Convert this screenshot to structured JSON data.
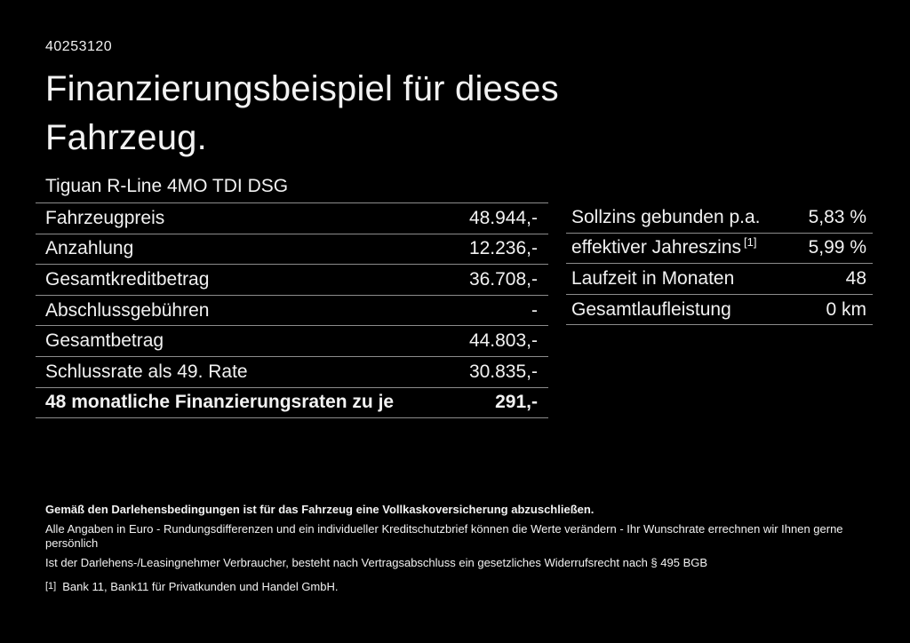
{
  "page": {
    "ref_number": "40253120",
    "title_line1": "Finanzierungsbeispiel für dieses",
    "title_line2": "Fahrzeug.",
    "model": "Tiguan R-Line 4MO TDI DSG"
  },
  "finance_table": {
    "rows": [
      {
        "label": "Fahrzeugpreis",
        "value": "48.944,-"
      },
      {
        "label": "Anzahlung",
        "value": "12.236,-"
      },
      {
        "label": "Gesamtkreditbetrag",
        "value": "36.708,-"
      },
      {
        "label": "Abschlussgebühren",
        "value": "-"
      },
      {
        "label": "Gesamtbetrag",
        "value": "44.803,-"
      },
      {
        "label": "Schlussrate als 49. Rate",
        "value": "30.835,-"
      },
      {
        "label": "48 monatliche Finanzierungsraten zu je",
        "value": "291,-"
      }
    ]
  },
  "conditions_table": {
    "rows": [
      {
        "label": "Sollzins gebunden p.a.",
        "value": "5,83 %"
      },
      {
        "label": "effektiver Jahreszins",
        "sup": "[1]",
        "value": "5,99 %"
      },
      {
        "label": "Laufzeit in Monaten",
        "value": "48"
      },
      {
        "label": "Gesamtlaufleistung",
        "value": "0 km"
      }
    ]
  },
  "footnotes": {
    "bold_note": "Gemäß den Darlehensbedingungen ist für das Fahrzeug eine Vollkaskoversicherung abzuschließen.",
    "note1": "Alle Angaben in Euro - Rundungsdifferenzen und ein individueller Kreditschutzbrief können die Werte verändern - Ihr Wunschrate errechnen wir Ihnen gerne persönlich",
    "note2": "Ist der Darlehens-/Leasingnehmer Verbraucher, besteht nach Vertragsabschluss ein gesetzliches Widerrufsrecht nach § 495 BGB",
    "footnote_marker": "[1]",
    "footnote_text": "Bank 11, Bank11 für Privatkunden und Handel GmbH."
  },
  "colors": {
    "background": "#000000",
    "text": "#f2f2f2",
    "divider": "#8c8c8c"
  }
}
